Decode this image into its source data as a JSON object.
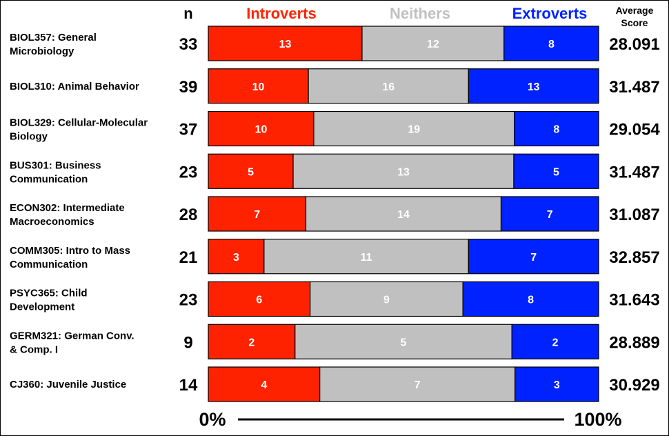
{
  "chart_data": {
    "type": "bar",
    "stacked": true,
    "normalized": true,
    "title": "",
    "header": {
      "n_label": "n",
      "score_label_line1": "Average",
      "score_label_line2": "Score"
    },
    "series": [
      {
        "name": "Introverts",
        "color": "#ff2200",
        "values": [
          13,
          10,
          10,
          5,
          7,
          3,
          6,
          2,
          4
        ]
      },
      {
        "name": "Neithers",
        "color": "#c0c0c0",
        "values": [
          12,
          16,
          19,
          13,
          14,
          11,
          9,
          5,
          7
        ]
      },
      {
        "name": "Extroverts",
        "color": "#0022ff",
        "values": [
          8,
          13,
          8,
          5,
          7,
          7,
          8,
          2,
          3
        ]
      }
    ],
    "categories": [
      {
        "label": [
          "BIOL357: General",
          "Microbiology"
        ],
        "n": "33",
        "score": "28.091"
      },
      {
        "label": [
          "BIOL310: Animal Behavior"
        ],
        "n": "39",
        "score": "31.487"
      },
      {
        "label": [
          "BIOL329: Cellular-Molecular",
          "Biology"
        ],
        "n": "37",
        "score": "29.054"
      },
      {
        "label": [
          "BUS301: Business",
          "Communication"
        ],
        "n": "23",
        "score": "31.487"
      },
      {
        "label": [
          "ECON302: Intermediate",
          "Macroeconomics"
        ],
        "n": "28",
        "score": "31.087"
      },
      {
        "label": [
          "COMM305: Intro to Mass",
          "Communication"
        ],
        "n": "21",
        "score": "32.857"
      },
      {
        "label": [
          "PSYC365: Child",
          "Development"
        ],
        "n": "23",
        "score": "31.643"
      },
      {
        "label": [
          "GERM321: German Conv.",
          "& Comp. I"
        ],
        "n": "9",
        "score": "28.889"
      },
      {
        "label": [
          "CJ360: Juvenile Justice"
        ],
        "n": "14",
        "score": "30.929"
      }
    ],
    "axis": {
      "min_label": "0%",
      "max_label": "100%",
      "xlim": [
        0,
        100
      ]
    },
    "grid": false,
    "legend_position": "top"
  }
}
